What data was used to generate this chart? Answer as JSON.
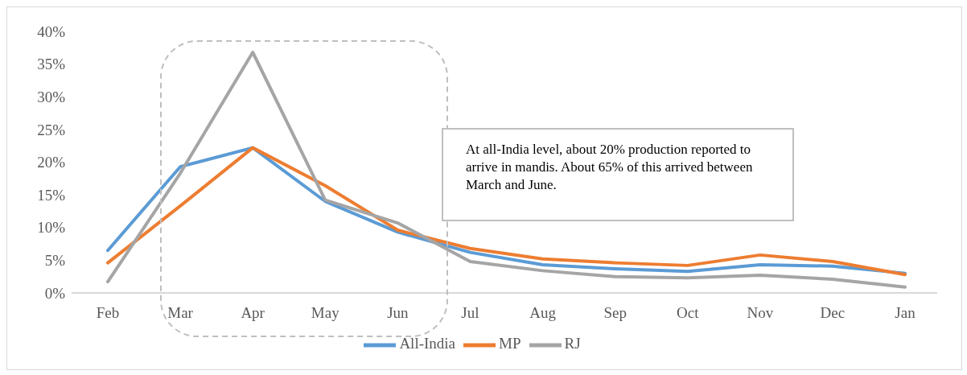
{
  "chart_data": {
    "type": "line",
    "categories": [
      "Feb",
      "Mar",
      "Apr",
      "May",
      "Jun",
      "Jul",
      "Aug",
      "Sep",
      "Oct",
      "Nov",
      "Dec",
      "Jan"
    ],
    "series": [
      {
        "name": "All-India",
        "color": "#5b9bd5",
        "values": [
          6.5,
          19.3,
          22.2,
          14.0,
          9.3,
          6.2,
          4.3,
          3.7,
          3.3,
          4.3,
          4.1,
          3.0
        ]
      },
      {
        "name": "MP",
        "color": "#ed7d31",
        "values": [
          4.6,
          13.3,
          22.2,
          16.4,
          9.6,
          6.8,
          5.2,
          4.6,
          4.2,
          5.8,
          4.8,
          2.8
        ]
      },
      {
        "name": "RJ",
        "color": "#a5a5a5",
        "values": [
          1.7,
          18.3,
          36.8,
          14.2,
          10.7,
          4.8,
          3.4,
          2.5,
          2.3,
          2.7,
          2.1,
          0.9
        ]
      }
    ],
    "ylim": [
      0,
      40
    ],
    "yticks": [
      {
        "value": 0,
        "label": "0%"
      },
      {
        "value": 5,
        "label": "5%"
      },
      {
        "value": 10,
        "label": "10%"
      },
      {
        "value": 15,
        "label": "15%"
      },
      {
        "value": 20,
        "label": "20%"
      },
      {
        "value": 25,
        "label": "25%"
      },
      {
        "value": 30,
        "label": "30%"
      },
      {
        "value": 35,
        "label": "35%"
      },
      {
        "value": 40,
        "label": "40%"
      }
    ],
    "grid": false,
    "legend": "bottom",
    "marker": "none",
    "line_style": "solid",
    "annotations": [
      "At all-India level, about 20% production reported to arrive in mandis. About 65% of this arrived between March and June."
    ]
  }
}
